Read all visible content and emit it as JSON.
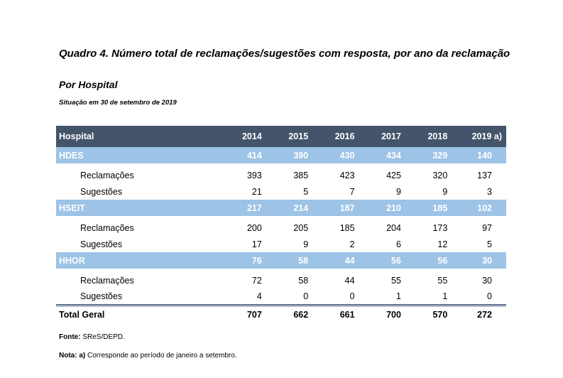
{
  "title": "Quadro 4. Número total de reclamações/sugestões com resposta, por ano da reclamação",
  "subtitle": "Por Hospital",
  "situation": "Situação em 30 de setembro de 2019",
  "table": {
    "header": [
      "Hospital",
      "2014",
      "2015",
      "2016",
      "2017",
      "2018",
      "2019 a)"
    ],
    "groups": [
      {
        "name": "HDES",
        "totals": [
          "414",
          "390",
          "430",
          "434",
          "329",
          "140"
        ],
        "rows": [
          {
            "label": "Reclamações",
            "values": [
              "393",
              "385",
              "423",
              "425",
              "320",
              "137"
            ]
          },
          {
            "label": "Sugestões",
            "values": [
              "21",
              "5",
              "7",
              "9",
              "9",
              "3"
            ]
          }
        ]
      },
      {
        "name": "HSEIT",
        "totals": [
          "217",
          "214",
          "187",
          "210",
          "185",
          "102"
        ],
        "rows": [
          {
            "label": "Reclamações",
            "values": [
              "200",
              "205",
              "185",
              "204",
              "173",
              "97"
            ]
          },
          {
            "label": "Sugestões",
            "values": [
              "17",
              "9",
              "2",
              "6",
              "12",
              "5"
            ]
          }
        ]
      },
      {
        "name": "HHOR",
        "totals": [
          "76",
          "58",
          "44",
          "56",
          "56",
          "30"
        ],
        "rows": [
          {
            "label": "Reclamações",
            "values": [
              "72",
              "58",
              "44",
              "55",
              "55",
              "30"
            ]
          },
          {
            "label": "Sugestões",
            "values": [
              "4",
              "0",
              "0",
              "1",
              "1",
              "0"
            ]
          }
        ]
      }
    ],
    "total": {
      "label": "Total Geral",
      "values": [
        "707",
        "662",
        "661",
        "700",
        "570",
        "272"
      ]
    }
  },
  "source": {
    "label": "Fonte:",
    "text": " SReS/DEPD."
  },
  "note": {
    "label": "Nota:",
    "marker": " a)",
    "text": " Corresponde ao período de janeiro a setembro."
  },
  "colors": {
    "header_bg": "#44546a",
    "group_bg": "#9dc3e6",
    "rule": "#1f3864"
  }
}
